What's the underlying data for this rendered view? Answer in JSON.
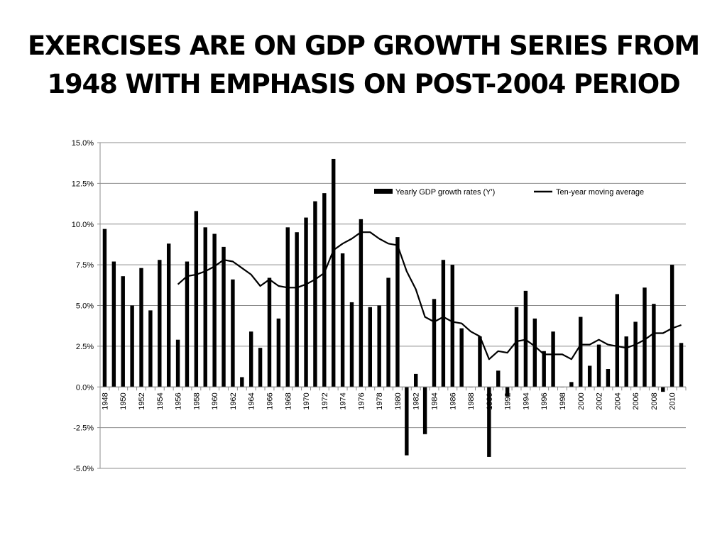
{
  "slide": {
    "title_line1": "EXERCISES ARE ON GDP GROWTH SERIES FROM",
    "title_line2": "1948 WITH EMPHASIS ON POST-2004 PERIOD"
  },
  "chart_data": {
    "type": "bar",
    "title": "",
    "xlabel": "",
    "ylabel": "",
    "ylim": [
      -0.05,
      0.15
    ],
    "y_ticks": [
      -0.05,
      -0.025,
      0,
      0.025,
      0.05,
      0.075,
      0.1,
      0.125,
      0.15
    ],
    "y_tick_labels": [
      "-5.0%",
      "-2.5%",
      "0.0%",
      "2.5%",
      "5.0%",
      "7.5%",
      "10.0%",
      "12.5%",
      "15.0%"
    ],
    "grid": true,
    "legend_position": "top-right",
    "x_tick_labels": [
      "1948",
      "1950",
      "1952",
      "1954",
      "1956",
      "1958",
      "1960",
      "1962",
      "1964",
      "1966",
      "1968",
      "1970",
      "1972",
      "1974",
      "1976",
      "1978",
      "1980",
      "1982",
      "1984",
      "1986",
      "1988",
      "1990",
      "1992",
      "1994",
      "1996",
      "1998",
      "2000",
      "2002",
      "2004",
      "2006",
      "2008",
      "2010"
    ],
    "categories": [
      1948,
      1949,
      1950,
      1951,
      1952,
      1953,
      1954,
      1955,
      1956,
      1957,
      1958,
      1959,
      1960,
      1961,
      1962,
      1963,
      1964,
      1965,
      1966,
      1967,
      1968,
      1969,
      1970,
      1971,
      1972,
      1973,
      1974,
      1975,
      1976,
      1977,
      1978,
      1979,
      1980,
      1981,
      1982,
      1983,
      1984,
      1985,
      1986,
      1987,
      1988,
      1989,
      1990,
      1991,
      1992,
      1993,
      1994,
      1995,
      1996,
      1997,
      1998,
      1999,
      2000,
      2001,
      2002,
      2003,
      2004,
      2005,
      2006,
      2007,
      2008,
      2009,
      2010,
      2011
    ],
    "series": [
      {
        "name": "Yearly GDP growth rates (Y')",
        "type": "bar",
        "color": "#000000",
        "values": [
          0.097,
          0.077,
          0.068,
          0.05,
          0.073,
          0.047,
          0.078,
          0.088,
          0.029,
          0.077,
          0.108,
          0.098,
          0.094,
          0.086,
          0.066,
          0.006,
          0.034,
          0.024,
          0.067,
          0.042,
          0.098,
          0.095,
          0.104,
          0.114,
          0.119,
          0.14,
          0.082,
          0.052,
          0.103,
          0.049,
          0.05,
          0.067,
          0.092,
          -0.042,
          0.008,
          -0.029,
          0.054,
          0.078,
          0.075,
          0.036,
          0.0,
          0.031,
          -0.043,
          0.01,
          -0.006,
          0.049,
          0.059,
          0.042,
          0.022,
          0.034,
          0.0,
          0.003,
          0.043,
          0.013,
          0.026,
          0.011,
          0.057,
          0.031,
          0.04,
          0.061,
          0.051,
          -0.003,
          0.075,
          0.027
        ]
      },
      {
        "name": "Ten-year moving average",
        "type": "line",
        "color": "#000000",
        "values": [
          null,
          null,
          null,
          null,
          null,
          null,
          null,
          null,
          0.063,
          0.068,
          0.069,
          0.071,
          0.074,
          0.078,
          0.077,
          0.073,
          0.069,
          0.062,
          0.066,
          0.062,
          0.061,
          0.061,
          0.063,
          0.066,
          0.07,
          0.084,
          0.088,
          0.091,
          0.095,
          0.095,
          0.091,
          0.088,
          0.087,
          0.071,
          0.06,
          0.043,
          0.04,
          0.043,
          0.04,
          0.039,
          0.034,
          0.031,
          0.017,
          0.022,
          0.021,
          0.028,
          0.029,
          0.025,
          0.02,
          0.02,
          0.02,
          0.017,
          0.026,
          0.026,
          0.029,
          0.026,
          0.025,
          0.024,
          0.026,
          0.029,
          0.033,
          0.033,
          0.036,
          0.038
        ]
      }
    ]
  }
}
